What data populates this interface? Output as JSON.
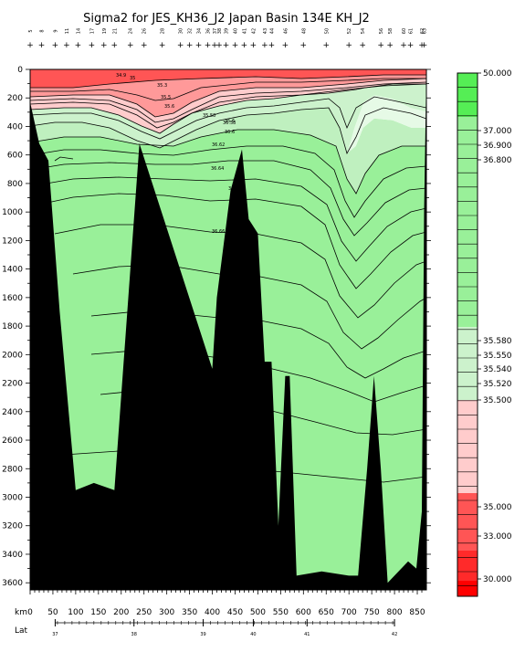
{
  "chart_data": {
    "type": "contour_section",
    "title": "Sigma2 for JES_KH36_J2 Japan Basin 134E KH_J2",
    "xlabel": "km",
    "lat_label": "Lat",
    "x_ticks": [
      0,
      50,
      100,
      150,
      200,
      250,
      300,
      350,
      400,
      450,
      500,
      550,
      600,
      650,
      700,
      750,
      800,
      850
    ],
    "x_range": [
      0,
      870
    ],
    "y_ticks": [
      0,
      200,
      400,
      600,
      800,
      1000,
      1200,
      1400,
      1600,
      1800,
      2000,
      2200,
      2400,
      2600,
      2800,
      3000,
      3200,
      3400,
      3600
    ],
    "y_range": [
      0,
      3650
    ],
    "lat_ticks": [
      {
        "lat": "37",
        "km": 55
      },
      {
        "lat": "38",
        "km": 228
      },
      {
        "lat": "39",
        "km": 380
      },
      {
        "lat": "40",
        "km": 490
      },
      {
        "lat": "41",
        "km": 608
      },
      {
        "lat": "42",
        "km": 800
      }
    ],
    "stations_km": [
      0,
      25,
      55,
      80,
      105,
      135,
      162,
      185,
      220,
      250,
      290,
      330,
      350,
      370,
      390,
      405,
      415,
      430,
      450,
      470,
      490,
      515,
      530,
      560,
      600,
      650,
      700,
      730,
      770,
      790,
      820,
      835,
      860,
      865
    ],
    "station_numbers": [
      "5",
      "8",
      "9",
      "11",
      "14",
      "17",
      "19",
      "21",
      "24",
      "26",
      "28",
      "30",
      "32",
      "34",
      "36",
      "37",
      "38",
      "39",
      "40",
      "41",
      "42",
      "43",
      "44",
      "46",
      "48",
      "50",
      "52",
      "54",
      "56",
      "58",
      "60",
      "61",
      "62",
      "63"
    ],
    "colorbar": {
      "labels": [
        "50.000",
        "37.000",
        "36.900",
        "36.800",
        "35.580",
        "35.550",
        "35.540",
        "35.520",
        "35.500",
        "35.000",
        "33.000",
        "30.000"
      ],
      "colors": {
        "bright_green": "#55ee55",
        "light_green": "#99f099",
        "pale_green": "#ccf2cc",
        "very_pale_green": "#e6fae6",
        "pale_pink": "#ffcccc",
        "pink": "#ff9999",
        "red": "#ff5555",
        "bright_red": "#ff0000"
      }
    },
    "bathymetry": [
      [
        0,
        230
      ],
      [
        20,
        520
      ],
      [
        40,
        640
      ],
      [
        65,
        1700
      ],
      [
        100,
        2950
      ],
      [
        140,
        2900
      ],
      [
        185,
        2950
      ],
      [
        240,
        520
      ],
      [
        400,
        2100
      ],
      [
        410,
        1600
      ],
      [
        440,
        850
      ],
      [
        465,
        560
      ],
      [
        480,
        1050
      ],
      [
        500,
        1150
      ],
      [
        515,
        2050
      ],
      [
        530,
        2050
      ],
      [
        545,
        3200
      ],
      [
        560,
        2150
      ],
      [
        570,
        2150
      ],
      [
        585,
        3550
      ],
      [
        640,
        3520
      ],
      [
        700,
        3550
      ],
      [
        720,
        3550
      ],
      [
        740,
        2800
      ],
      [
        755,
        2150
      ],
      [
        770,
        2800
      ],
      [
        785,
        3600
      ],
      [
        830,
        3450
      ],
      [
        848,
        3500
      ],
      [
        860,
        3100
      ],
      [
        865,
        1000
      ],
      [
        870,
        0
      ]
    ],
    "contour_labels": [
      "34.9",
      "35",
      "35.3",
      "35.5",
      "35.6",
      "35.58",
      "35.6",
      "36.58",
      "36.6",
      "36.62",
      "36.64",
      "36.66",
      "36.6"
    ]
  }
}
